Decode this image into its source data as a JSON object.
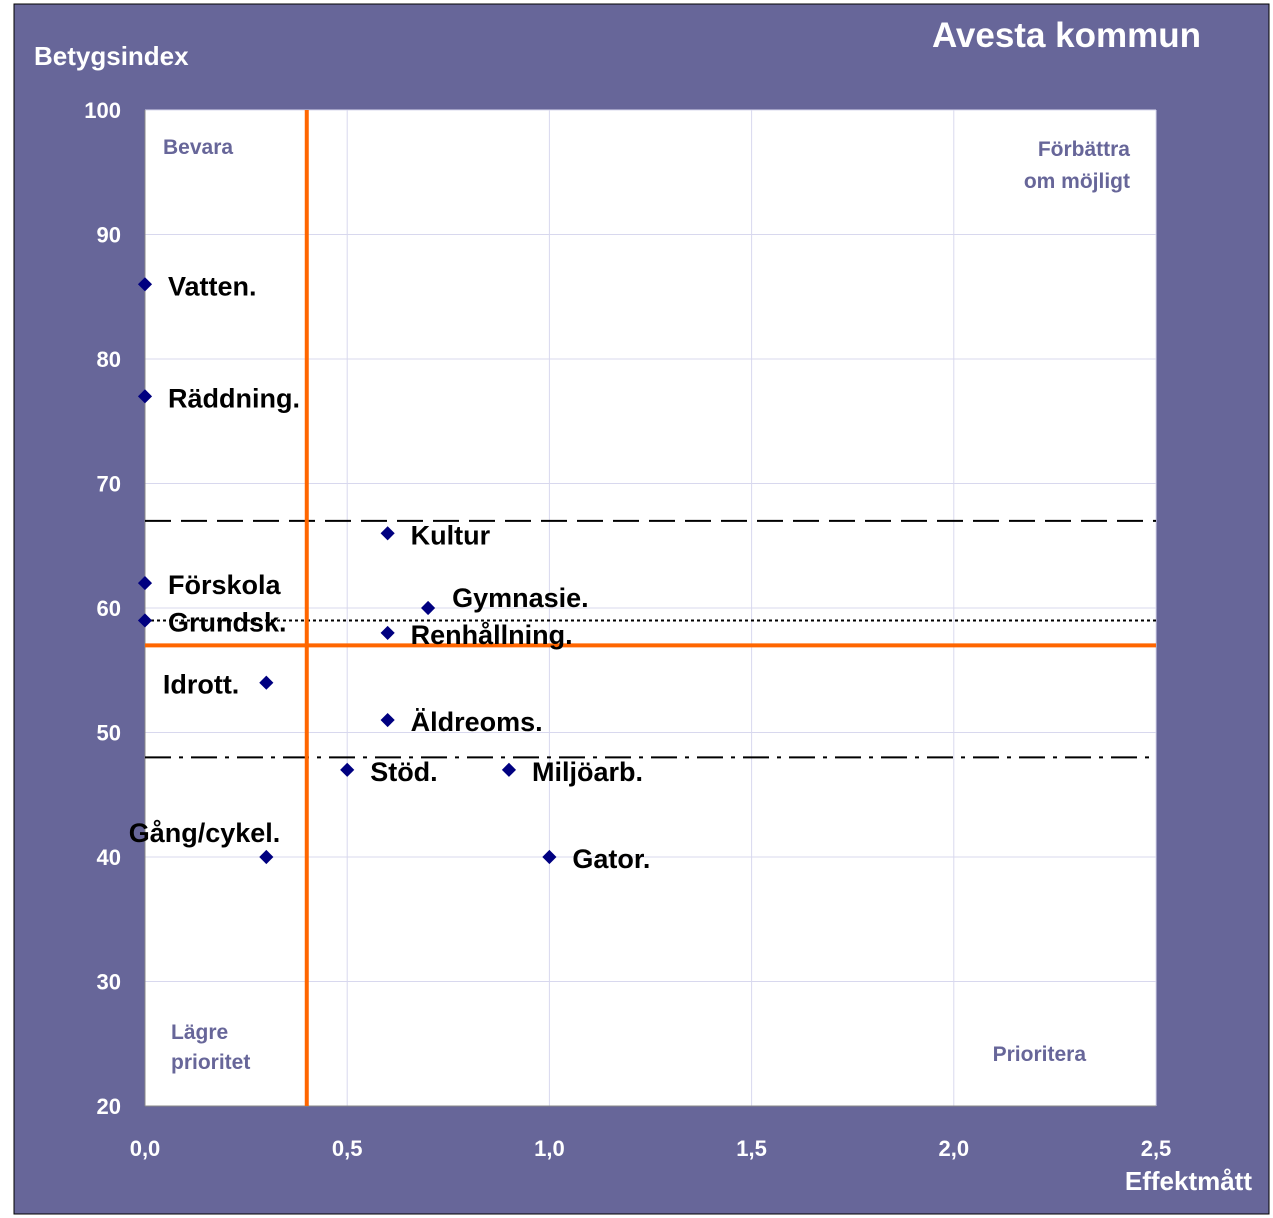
{
  "title": "Avesta kommun",
  "colors": {
    "frame_bg": "#676699",
    "plot_bg": "#ffffff",
    "grid": "#d8d8ee",
    "axis_text": "#ffffff",
    "threshold": "#ff6600",
    "point": "#000080",
    "quadrant_text": "#676699",
    "label_text": "#000000"
  },
  "chart_data": {
    "type": "scatter",
    "title": "Avesta kommun",
    "xlabel": "Effektmått",
    "ylabel": "Betygsindex",
    "xlim": [
      0,
      2.5
    ],
    "ylim": [
      20,
      100
    ],
    "x_ticks": [
      "0,0",
      "0,5",
      "1,0",
      "1,5",
      "2,0",
      "2,5"
    ],
    "x_tick_values": [
      0,
      0.5,
      1.0,
      1.5,
      2.0,
      2.5
    ],
    "y_ticks": [
      "20",
      "30",
      "40",
      "50",
      "60",
      "70",
      "80",
      "90",
      "100"
    ],
    "y_tick_values": [
      20,
      30,
      40,
      50,
      60,
      70,
      80,
      90,
      100
    ],
    "grid": true,
    "points": [
      {
        "label": "Vatten.",
        "x": 0.0,
        "y": 86
      },
      {
        "label": "Räddning.",
        "x": 0.0,
        "y": 77
      },
      {
        "label": "Kultur",
        "x": 0.6,
        "y": 66
      },
      {
        "label": "Förskola",
        "x": 0.0,
        "y": 62
      },
      {
        "label": "Gymnasie.",
        "x": 0.7,
        "y": 60
      },
      {
        "label": "Grundsk.",
        "x": 0.0,
        "y": 59
      },
      {
        "label": "Renhållning.",
        "x": 0.6,
        "y": 58
      },
      {
        "label": "Idrott.",
        "x": 0.3,
        "y": 54
      },
      {
        "label": "Äldreoms.",
        "x": 0.6,
        "y": 51
      },
      {
        "label": "Stöd.",
        "x": 0.5,
        "y": 47
      },
      {
        "label": "Miljöarb.",
        "x": 0.9,
        "y": 47
      },
      {
        "label": "Gång/cykel.",
        "x": 0.3,
        "y": 40
      },
      {
        "label": "Gator.",
        "x": 1.0,
        "y": 40
      }
    ],
    "threshold_lines": {
      "vertical_x": 0.4,
      "horizontal_y": 57
    },
    "reference_lines": [
      {
        "y": 67,
        "style": "dashed"
      },
      {
        "y": 59,
        "style": "dotted"
      },
      {
        "y": 48,
        "style": "dashdot"
      }
    ],
    "quadrants": {
      "top_left": "Bevara",
      "top_right": [
        "Förbättra",
        "om möjligt"
      ],
      "bottom_left": [
        "Lägre",
        "prioritet"
      ],
      "bottom_right": "Prioritera"
    }
  }
}
